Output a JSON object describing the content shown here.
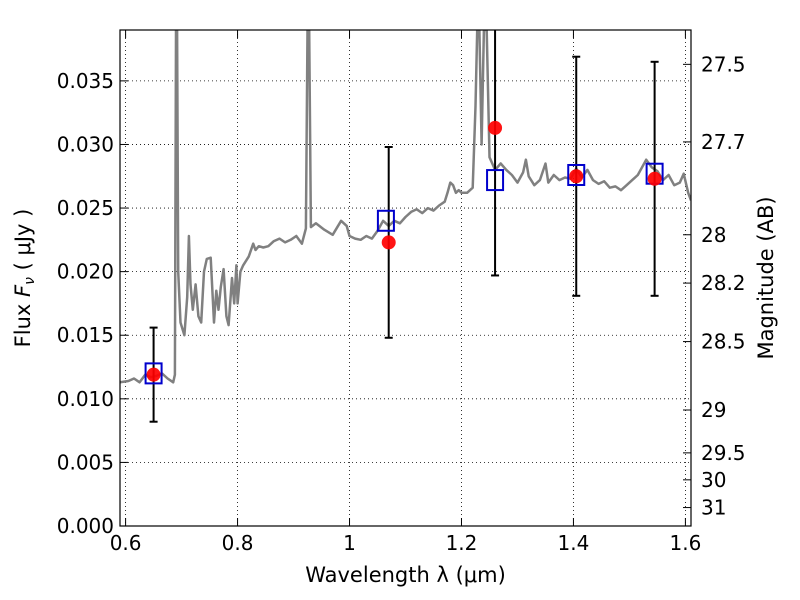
{
  "chart_data": {
    "type": "scatter",
    "xlabel": "Wavelength  λ (μm)",
    "ylabel": "Flux  F_ν  ( μJy )",
    "ylabel_parts": {
      "prefix": "Flux  ",
      "symbol": "F",
      "subscript": "ν",
      "suffix": "  ( μJy )"
    },
    "y2label": "Magnitude (AB)",
    "xlim": [
      0.59,
      1.61
    ],
    "ylim": [
      0.0,
      0.039
    ],
    "grid": true,
    "x_ticks": [
      0.6,
      0.8,
      1.0,
      1.2,
      1.4,
      1.6
    ],
    "x_tick_labels": [
      "0.6",
      "0.8",
      "1",
      "1.2",
      "1.4",
      "1.6"
    ],
    "y_ticks": [
      0.0,
      0.005,
      0.01,
      0.015,
      0.02,
      0.025,
      0.03,
      0.035
    ],
    "y_tick_labels": [
      "0.000",
      "0.005",
      "0.010",
      "0.015",
      "0.020",
      "0.025",
      "0.030",
      "0.035"
    ],
    "magnitude_ticks": [
      {
        "label": "27.5",
        "flux": 0.0363
      },
      {
        "label": "27.7",
        "flux": 0.0302
      },
      {
        "label": "28",
        "flux": 0.0229
      },
      {
        "label": "28.2",
        "flux": 0.0191
      },
      {
        "label": "28.5",
        "flux": 0.0145
      },
      {
        "label": "29",
        "flux": 0.00912
      },
      {
        "label": "29.5",
        "flux": 0.00575
      },
      {
        "label": "30",
        "flux": 0.00363
      },
      {
        "label": "31",
        "flux": 0.00145
      }
    ],
    "series": [
      {
        "kind": "model_spectrum",
        "color": "#808080",
        "points": [
          [
            0.59,
            0.0113
          ],
          [
            0.605,
            0.0114
          ],
          [
            0.615,
            0.0116
          ],
          [
            0.625,
            0.0113
          ],
          [
            0.635,
            0.0119
          ],
          [
            0.645,
            0.0117
          ],
          [
            0.655,
            0.0118
          ],
          [
            0.665,
            0.012
          ],
          [
            0.675,
            0.0116
          ],
          [
            0.685,
            0.0113
          ],
          [
            0.688,
            0.0119
          ],
          [
            0.69,
            0.039
          ],
          [
            0.692,
            0.039
          ],
          [
            0.694,
            0.02
          ],
          [
            0.698,
            0.016
          ],
          [
            0.705,
            0.015
          ],
          [
            0.71,
            0.018
          ],
          [
            0.713,
            0.0228
          ],
          [
            0.716,
            0.019
          ],
          [
            0.72,
            0.017
          ],
          [
            0.725,
            0.019
          ],
          [
            0.73,
            0.0165
          ],
          [
            0.735,
            0.016
          ],
          [
            0.74,
            0.02
          ],
          [
            0.745,
            0.021
          ],
          [
            0.752,
            0.0211
          ],
          [
            0.758,
            0.016
          ],
          [
            0.762,
            0.0185
          ],
          [
            0.766,
            0.017
          ],
          [
            0.77,
            0.0188
          ],
          [
            0.775,
            0.0202
          ],
          [
            0.78,
            0.0165
          ],
          [
            0.784,
            0.0158
          ],
          [
            0.79,
            0.0195
          ],
          [
            0.794,
            0.0175
          ],
          [
            0.798,
            0.0205
          ],
          [
            0.8,
            0.0175
          ],
          [
            0.805,
            0.02
          ],
          [
            0.81,
            0.0205
          ],
          [
            0.82,
            0.0212
          ],
          [
            0.828,
            0.0222
          ],
          [
            0.832,
            0.0217
          ],
          [
            0.838,
            0.022
          ],
          [
            0.846,
            0.0219
          ],
          [
            0.855,
            0.022
          ],
          [
            0.865,
            0.0224
          ],
          [
            0.875,
            0.0226
          ],
          [
            0.885,
            0.0223
          ],
          [
            0.895,
            0.0225
          ],
          [
            0.905,
            0.0228
          ],
          [
            0.915,
            0.0222
          ],
          [
            0.922,
            0.0234
          ],
          [
            0.925,
            0.039
          ],
          [
            0.928,
            0.039
          ],
          [
            0.931,
            0.0235
          ],
          [
            0.94,
            0.0238
          ],
          [
            0.955,
            0.0233
          ],
          [
            0.97,
            0.0229
          ],
          [
            0.985,
            0.024
          ],
          [
            0.995,
            0.0236
          ],
          [
            1.0,
            0.0228
          ],
          [
            1.01,
            0.0226
          ],
          [
            1.02,
            0.0225
          ],
          [
            1.03,
            0.0228
          ],
          [
            1.04,
            0.0226
          ],
          [
            1.05,
            0.0232
          ],
          [
            1.06,
            0.024
          ],
          [
            1.07,
            0.0236
          ],
          [
            1.08,
            0.024
          ],
          [
            1.09,
            0.0238
          ],
          [
            1.1,
            0.0243
          ],
          [
            1.11,
            0.0247
          ],
          [
            1.12,
            0.0249
          ],
          [
            1.13,
            0.0246
          ],
          [
            1.14,
            0.025
          ],
          [
            1.15,
            0.0248
          ],
          [
            1.16,
            0.0252
          ],
          [
            1.17,
            0.0255
          ],
          [
            1.175,
            0.0262
          ],
          [
            1.18,
            0.027
          ],
          [
            1.185,
            0.0268
          ],
          [
            1.19,
            0.0262
          ],
          [
            1.195,
            0.0264
          ],
          [
            1.2,
            0.0262
          ],
          [
            1.21,
            0.0262
          ],
          [
            1.22,
            0.0266
          ],
          [
            1.225,
            0.033
          ],
          [
            1.228,
            0.039
          ],
          [
            1.232,
            0.039
          ],
          [
            1.236,
            0.03
          ],
          [
            1.24,
            0.039
          ],
          [
            1.245,
            0.039
          ],
          [
            1.25,
            0.029
          ],
          [
            1.26,
            0.028
          ],
          [
            1.27,
            0.0285
          ],
          [
            1.28,
            0.028
          ],
          [
            1.29,
            0.0276
          ],
          [
            1.3,
            0.027
          ],
          [
            1.31,
            0.0278
          ],
          [
            1.315,
            0.0288
          ],
          [
            1.32,
            0.0275
          ],
          [
            1.33,
            0.0268
          ],
          [
            1.34,
            0.0272
          ],
          [
            1.35,
            0.0285
          ],
          [
            1.355,
            0.027
          ],
          [
            1.365,
            0.0276
          ],
          [
            1.375,
            0.0272
          ],
          [
            1.385,
            0.0274
          ],
          [
            1.395,
            0.0273
          ],
          [
            1.405,
            0.0281
          ],
          [
            1.415,
            0.0274
          ],
          [
            1.425,
            0.028
          ],
          [
            1.435,
            0.0272
          ],
          [
            1.445,
            0.0269
          ],
          [
            1.455,
            0.0271
          ],
          [
            1.465,
            0.0266
          ],
          [
            1.475,
            0.0267
          ],
          [
            1.485,
            0.0264
          ],
          [
            1.495,
            0.0268
          ],
          [
            1.505,
            0.0272
          ],
          [
            1.515,
            0.0276
          ],
          [
            1.525,
            0.0284
          ],
          [
            1.53,
            0.0288
          ],
          [
            1.54,
            0.0282
          ],
          [
            1.55,
            0.0279
          ],
          [
            1.56,
            0.0272
          ],
          [
            1.57,
            0.0276
          ],
          [
            1.58,
            0.0268
          ],
          [
            1.59,
            0.027
          ],
          [
            1.597,
            0.0277
          ],
          [
            1.605,
            0.0262
          ],
          [
            1.61,
            0.0256
          ]
        ]
      },
      {
        "kind": "observed_flux",
        "marker": "circle",
        "color": "#ff0000",
        "points": [
          {
            "x": 0.65,
            "y": 0.0119,
            "yerr": 0.0037
          },
          {
            "x": 1.07,
            "y": 0.0223,
            "yerr": 0.0075
          },
          {
            "x": 1.26,
            "y": 0.0313,
            "yerr": 0.0116
          },
          {
            "x": 1.405,
            "y": 0.0275,
            "yerr": 0.0094
          },
          {
            "x": 1.545,
            "y": 0.0273,
            "yerr": 0.0092
          }
        ]
      },
      {
        "kind": "synthetic_photometry",
        "marker": "open-square",
        "color": "#0000cc",
        "points": [
          {
            "x": 0.65,
            "y": 0.012
          },
          {
            "x": 1.065,
            "y": 0.024
          },
          {
            "x": 1.26,
            "y": 0.0272
          },
          {
            "x": 1.405,
            "y": 0.0276
          },
          {
            "x": 1.545,
            "y": 0.0277
          }
        ]
      }
    ]
  }
}
